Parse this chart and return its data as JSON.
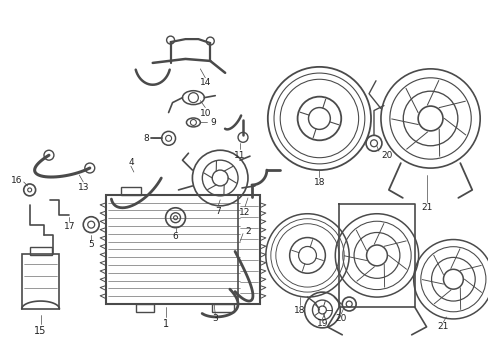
{
  "bg_color": "#ffffff",
  "line_color": "#4a4a4a",
  "label_color": "#222222",
  "fig_width": 4.9,
  "fig_height": 3.6,
  "dpi": 100
}
